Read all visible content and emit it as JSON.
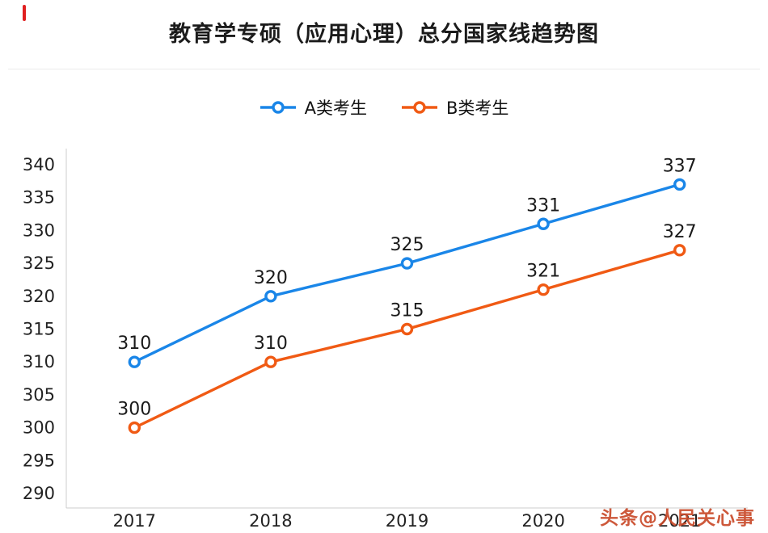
{
  "title": "教育学专硕（应用心理）总分国家线趋势图",
  "chart_data": {
    "type": "line",
    "title": "教育学专硕（应用心理）总分国家线趋势图",
    "categories": [
      "2017",
      "2018",
      "2019",
      "2020",
      "2021"
    ],
    "series": [
      {
        "name": "A类考生",
        "color": "#1a86e8",
        "values": [
          310,
          320,
          325,
          331,
          337
        ]
      },
      {
        "name": "B类考生",
        "color": "#f05a14",
        "values": [
          300,
          310,
          315,
          321,
          327
        ]
      }
    ],
    "ylim": [
      290,
      340
    ],
    "ytick_step": 5,
    "xlabel": "",
    "ylabel": "",
    "grid": false,
    "legend_position": "top"
  },
  "watermark": {
    "text": "头条@人民关心事",
    "color": "#c94a2a"
  }
}
